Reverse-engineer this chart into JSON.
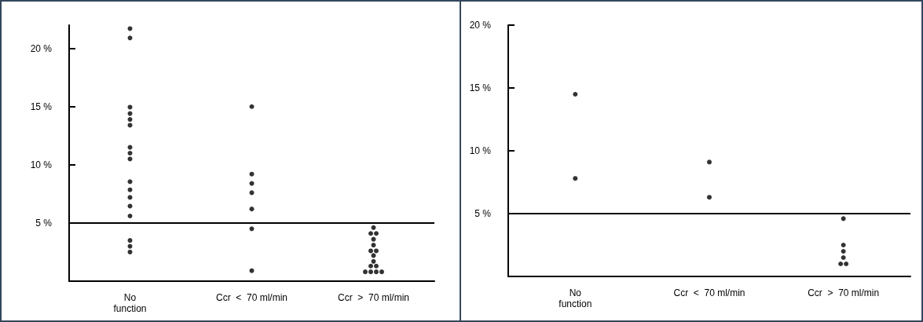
{
  "chart_data": [
    {
      "type": "scatter",
      "categories": [
        "No\nfunction",
        "Ccr  <  70 ml/min",
        "Ccr  >  70 ml/min"
      ],
      "marker": "circle",
      "ylim": [
        0,
        22
      ],
      "yticks": [
        {
          "value": 5,
          "label": "5 %"
        },
        {
          "value": 10,
          "label": "10 %"
        },
        {
          "value": 15,
          "label": "15 %"
        },
        {
          "value": 20,
          "label": "20 %"
        }
      ],
      "ref_lines": [
        {
          "axis": "y",
          "value": 5,
          "color": "#000000"
        }
      ],
      "series": [
        {
          "color": "#000000",
          "x": [
            "No\nfunction",
            "No\nfunction",
            "No\nfunction",
            "No\nfunction",
            "No\nfunction",
            "No\nfunction",
            "No\nfunction",
            "No\nfunction",
            "No\nfunction",
            "No\nfunction",
            "No\nfunction",
            "No\nfunction",
            "No\nfunction",
            "No\nfunction",
            "No\nfunction",
            "No\nfunction",
            "No\nfunction"
          ],
          "values": [
            21.7,
            20.9,
            14.95,
            14.4,
            13.9,
            13.4,
            11.5,
            11.0,
            10.5,
            8.55,
            7.85,
            7.2,
            6.45,
            5.6,
            3.5,
            3.0,
            2.5
          ]
        },
        {
          "color": "#000000",
          "x": [
            "Ccr  <  70 ml/min",
            "Ccr  <  70 ml/min",
            "Ccr  <  70 ml/min",
            "Ccr  <  70 ml/min",
            "Ccr  <  70 ml/min",
            "Ccr  <  70 ml/min",
            "Ccr  <  70 ml/min"
          ],
          "values": [
            15.0,
            9.2,
            8.4,
            7.6,
            6.2,
            4.5,
            0.9
          ]
        },
        {
          "color": "#000000",
          "x": [
            "Ccr  >  70 ml/min",
            "Ccr  >  70 ml/min",
            "Ccr  >  70 ml/min",
            "Ccr  >  70 ml/min",
            "Ccr  >  70 ml/min",
            "Ccr  >  70 ml/min",
            "Ccr  >  70 ml/min",
            "Ccr  >  70 ml/min",
            "Ccr  >  70 ml/min",
            "Ccr  >  70 ml/min",
            "Ccr  >  70 ml/min",
            "Ccr  >  70 ml/min",
            "Ccr  >  70 ml/min",
            "Ccr  >  70 ml/min",
            "Ccr  >  70 ml/min"
          ],
          "values": [
            4.6,
            4.1,
            4.1,
            3.6,
            3.1,
            2.6,
            2.6,
            2.2,
            1.7,
            1.3,
            1.3,
            0.8,
            0.8,
            0.8,
            0.8
          ]
        }
      ]
    },
    {
      "type": "scatter",
      "categories": [
        "No\nfunction",
        "Ccr  <  70 ml/min",
        "Ccr  >  70 ml/min"
      ],
      "marker": "circle",
      "ylim": [
        0,
        20
      ],
      "yticks": [
        {
          "value": 5,
          "label": "5 %"
        },
        {
          "value": 10,
          "label": "10 %"
        },
        {
          "value": 15,
          "label": "15 %"
        },
        {
          "value": 20,
          "label": "20 %"
        }
      ],
      "ref_lines": [
        {
          "axis": "y",
          "value": 5,
          "color": "#000000"
        }
      ],
      "series": [
        {
          "color": "#000000",
          "x": [
            "No\nfunction",
            "No\nfunction"
          ],
          "values": [
            14.5,
            7.8
          ]
        },
        {
          "color": "#000000",
          "x": [
            "Ccr  <  70 ml/min",
            "Ccr  <  70 ml/min"
          ],
          "values": [
            9.1,
            6.3
          ]
        },
        {
          "color": "#000000",
          "x": [
            "Ccr  >  70 ml/min",
            "Ccr  >  70 ml/min",
            "Ccr  >  70 ml/min",
            "Ccr  >  70 ml/min",
            "Ccr  >  70 ml/min",
            "Ccr  >  70 ml/min"
          ],
          "values": [
            4.6,
            2.5,
            2.0,
            1.5,
            1.0,
            1.0
          ]
        }
      ]
    }
  ]
}
